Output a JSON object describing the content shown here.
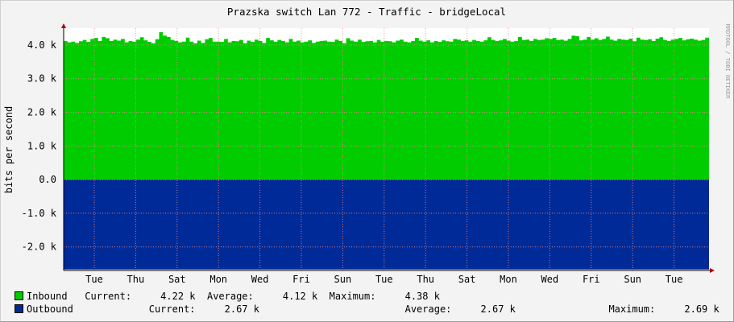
{
  "chart_data": {
    "type": "area",
    "title": "Prazska switch Lan 772 - Traffic - bridgeLocal",
    "ylabel": "bits per second",
    "watermark": "RRDTOOL / TOBI OETIKER",
    "ylim": [
      -2700,
      4500
    ],
    "yticks": [
      {
        "value": 4000,
        "label": "4.0 k"
      },
      {
        "value": 3000,
        "label": "3.0 k"
      },
      {
        "value": 2000,
        "label": "2.0 k"
      },
      {
        "value": 1000,
        "label": "1.0 k"
      },
      {
        "value": 0,
        "label": "0.0"
      },
      {
        "value": -1000,
        "label": "-1.0 k"
      },
      {
        "value": -2000,
        "label": "-2.0 k"
      }
    ],
    "xticks": [
      "Tue",
      "Thu",
      "Sat",
      "Mon",
      "Wed",
      "Fri",
      "Sun",
      "Tue",
      "Thu",
      "Sat",
      "Mon",
      "Wed",
      "Fri",
      "Sun",
      "Tue"
    ],
    "grid": true,
    "series": [
      {
        "name": "Inbound",
        "color": "#00cc00",
        "values": [
          4120,
          4080,
          4100,
          4060,
          4110,
          4150,
          4090,
          4180,
          4210,
          4120,
          4240,
          4200,
          4120,
          4160,
          4130,
          4180,
          4080,
          4120,
          4100,
          4160,
          4230,
          4140,
          4090,
          4050,
          4170,
          4380,
          4280,
          4240,
          4150,
          4120,
          4080,
          4100,
          4220,
          4100,
          4050,
          4130,
          4060,
          4170,
          4210,
          4100,
          4100,
          4090,
          4180,
          4080,
          4120,
          4110,
          4150,
          4050,
          4130,
          4090,
          4160,
          4120,
          4060,
          4210,
          4140,
          4100,
          4150,
          4120,
          4080,
          4180,
          4100,
          4130,
          4080,
          4100,
          4140,
          4060,
          4100,
          4120,
          4130,
          4100,
          4090,
          4160,
          4120,
          4050,
          4200,
          4130,
          4100,
          4160,
          4090,
          4110,
          4120,
          4080,
          4150,
          4100,
          4120,
          4110,
          4080,
          4130,
          4160,
          4100,
          4080,
          4120,
          4210,
          4130,
          4100,
          4140,
          4080,
          4120,
          4090,
          4140,
          4110,
          4100,
          4180,
          4160,
          4120,
          4140,
          4100,
          4150,
          4120,
          4100,
          4140,
          4230,
          4150,
          4120,
          4140,
          4180,
          4130,
          4100,
          4120,
          4240,
          4150,
          4160,
          4120,
          4180,
          4150,
          4160,
          4200,
          4180,
          4210,
          4150,
          4160,
          4130,
          4180,
          4280,
          4260,
          4140,
          4160,
          4240,
          4160,
          4200,
          4150,
          4180,
          4250,
          4160,
          4130,
          4180,
          4160,
          4150,
          4190,
          4110,
          4220,
          4160,
          4150,
          4170,
          4120,
          4190,
          4230,
          4150,
          4120,
          4160,
          4180,
          4210,
          4140,
          4170,
          4190,
          4160,
          4130,
          4150,
          4220
        ],
        "current": "4.22 k",
        "average": "4.12 k",
        "maximum": "4.38 k"
      },
      {
        "name": "Outbound",
        "color": "#002a97",
        "values": [
          -2670,
          -2670,
          -2670,
          -2670,
          -2670,
          -2670,
          -2670,
          -2670,
          -2670,
          -2670
        ],
        "current": "2.67 k",
        "average": "2.67 k",
        "maximum": "2.69 k"
      }
    ]
  },
  "legend": {
    "inbound_line": "Inbound   Current:     4.22 k  Average:     4.12 k  Maximum:     4.38 k",
    "outbound_line": "Outbound             Current:     2.67 k                         Average:     2.67 k                Maximum:     2.69 k",
    "inbound_color": "#00cc00",
    "outbound_color": "#002a97"
  }
}
